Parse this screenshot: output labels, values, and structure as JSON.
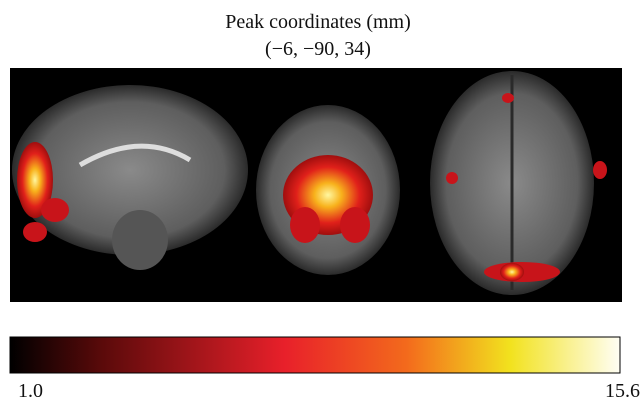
{
  "header": {
    "title": "Peak coordinates (mm)",
    "coordinates": "(−6, −90, 34)"
  },
  "colorbar": {
    "min_label": "1.0",
    "max_label": "15.6"
  }
}
